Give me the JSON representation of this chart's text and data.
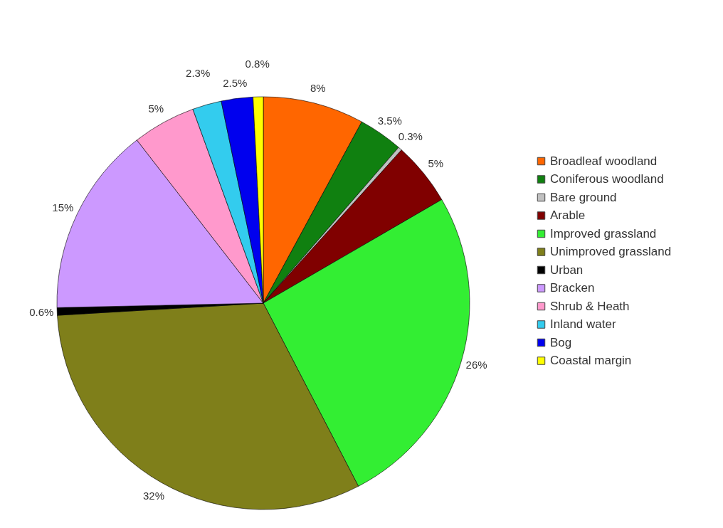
{
  "chart_data": {
    "type": "pie",
    "categories": [
      "Broadleaf woodland",
      "Coniferous woodland",
      "Bare ground",
      "Arable",
      "Improved grassland",
      "Unimproved grassland",
      "Urban",
      "Bracken",
      "Shrub & Heath",
      "Inland water",
      "Bog",
      "Coastal margin"
    ],
    "values": [
      8,
      3.5,
      0.3,
      5,
      26,
      32,
      0.6,
      15,
      5,
      2.3,
      2.5,
      0.8
    ],
    "value_labels": [
      "8%",
      "3.5%",
      "0.3%",
      "5%",
      "26%",
      "32%",
      "0.6%",
      "15%",
      "5%",
      "2.3%",
      "2.5%",
      "0.8%"
    ],
    "colors": [
      "#ff6600",
      "#108010",
      "#c0c0c0",
      "#800000",
      "#33ee33",
      "#7f7f1a",
      "#000000",
      "#cc99ff",
      "#ff99cc",
      "#33ccee",
      "#0000ee",
      "#ffff00"
    ],
    "legend": "right"
  }
}
